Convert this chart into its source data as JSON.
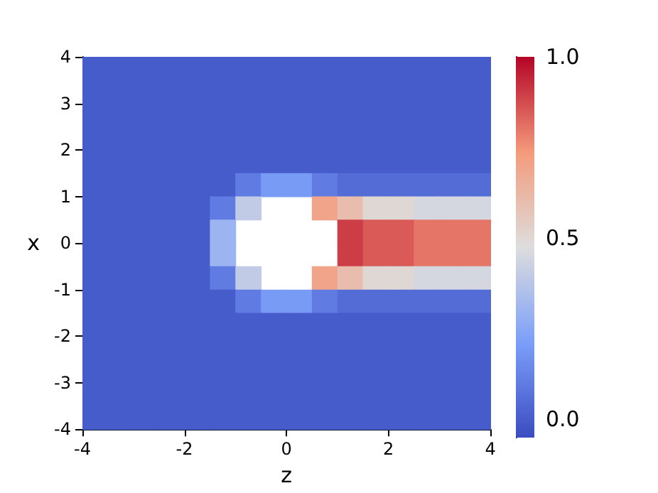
{
  "chart_data": {
    "type": "heatmap",
    "xlabel": "z",
    "ylabel": "x",
    "xlim": [
      -4,
      4
    ],
    "xticks": [
      -4,
      -2,
      0,
      2,
      4
    ],
    "ylim": [
      -4,
      4
    ],
    "yticks": [
      -4,
      -3,
      -2,
      -1,
      0,
      1,
      2,
      3,
      4
    ],
    "clim": [
      -0.05,
      1
    ],
    "cticks": [
      {
        "value": 0,
        "label": "0.0"
      },
      {
        "value": 0.5,
        "label": "0.5"
      },
      {
        "value": 1,
        "label": "1.0"
      }
    ],
    "cells": [
      [
        0,
        0,
        0,
        0,
        0,
        0,
        0,
        0,
        0,
        0,
        0,
        0,
        0,
        0,
        0,
        0
      ],
      [
        0,
        0,
        0,
        0,
        0,
        0,
        0,
        0,
        0,
        0,
        0,
        0,
        0,
        0,
        0,
        0
      ],
      [
        0,
        0,
        0,
        0,
        0,
        0,
        0,
        0,
        0,
        0,
        0,
        0,
        0,
        0,
        0,
        0
      ],
      [
        0,
        0,
        0,
        0,
        0,
        0,
        0,
        0,
        0,
        0,
        0,
        0,
        0,
        0,
        0,
        0
      ],
      [
        0,
        0,
        0,
        0,
        0,
        0,
        0,
        0,
        0,
        0,
        0,
        0,
        0,
        0,
        0,
        0
      ],
      [
        0,
        0,
        0,
        0,
        0,
        0,
        0.1,
        0.2,
        0.2,
        0.1,
        0.05,
        0.05,
        0.05,
        0.05,
        0.05,
        0.05
      ],
      [
        0,
        0,
        0,
        0,
        0,
        0.1,
        0.4,
        null,
        null,
        0.7,
        0.6,
        0.5,
        0.5,
        0.45,
        0.45,
        0.45
      ],
      [
        0,
        0,
        0,
        0,
        0,
        0.3,
        null,
        null,
        null,
        null,
        0.9,
        0.85,
        0.85,
        0.8,
        0.8,
        0.8
      ],
      [
        0,
        0,
        0,
        0,
        0,
        0.3,
        null,
        null,
        null,
        null,
        0.9,
        0.85,
        0.85,
        0.8,
        0.8,
        0.8
      ],
      [
        0,
        0,
        0,
        0,
        0,
        0.1,
        0.4,
        null,
        null,
        0.7,
        0.6,
        0.5,
        0.5,
        0.45,
        0.45,
        0.45
      ],
      [
        0,
        0,
        0,
        0,
        0,
        0,
        0.1,
        0.2,
        0.2,
        0.1,
        0.05,
        0.05,
        0.05,
        0.05,
        0.05,
        0.05
      ],
      [
        0,
        0,
        0,
        0,
        0,
        0,
        0,
        0,
        0,
        0,
        0,
        0,
        0,
        0,
        0,
        0
      ],
      [
        0,
        0,
        0,
        0,
        0,
        0,
        0,
        0,
        0,
        0,
        0,
        0,
        0,
        0,
        0,
        0
      ],
      [
        0,
        0,
        0,
        0,
        0,
        0,
        0,
        0,
        0,
        0,
        0,
        0,
        0,
        0,
        0,
        0
      ],
      [
        0,
        0,
        0,
        0,
        0,
        0,
        0,
        0,
        0,
        0,
        0,
        0,
        0,
        0,
        0,
        0
      ],
      [
        0,
        0,
        0,
        0,
        0,
        0,
        0,
        0,
        0,
        0,
        0,
        0,
        0,
        0,
        0,
        0
      ]
    ]
  }
}
